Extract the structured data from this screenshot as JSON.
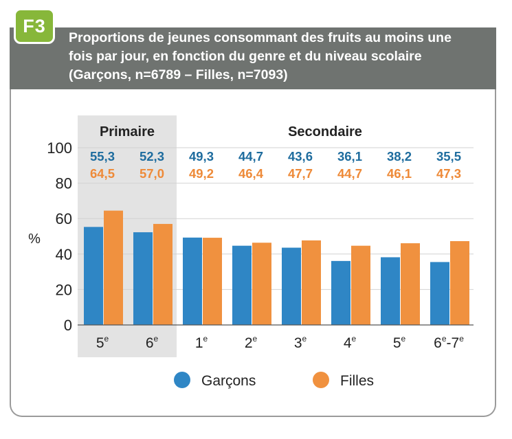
{
  "badge": "F3",
  "title_lines": [
    "Proportions de jeunes consommant des fruits au moins une",
    "fois par jour, en fonction du genre et du niveau scolaire",
    "(Garçons, n=6789 – Filles, n=7093)"
  ],
  "colors": {
    "garcons": "#2f86c5",
    "filles": "#f0913f",
    "garcons_label": "#1e6c9e",
    "filles_label": "#ee8a38",
    "primaire_shade": "#e3e3e3",
    "header": "#6f7370",
    "badge": "#87b73a"
  },
  "chart_data": {
    "type": "bar",
    "ylabel": "%",
    "ylim": [
      0,
      100
    ],
    "yticks": [
      0,
      20,
      40,
      60,
      80,
      100
    ],
    "grid": true,
    "groups": [
      {
        "label": "Primaire",
        "categories": 2,
        "shaded": true
      },
      {
        "label": "Secondaire",
        "categories": 6,
        "shaded": false
      }
    ],
    "categories": [
      {
        "base": "5",
        "sup": "e"
      },
      {
        "base": "6",
        "sup": "e"
      },
      {
        "base": "1",
        "sup": "e"
      },
      {
        "base": "2",
        "sup": "e"
      },
      {
        "base": "3",
        "sup": "e"
      },
      {
        "base": "4",
        "sup": "e"
      },
      {
        "base": "5",
        "sup": "e"
      },
      {
        "base": "6",
        "sup": "e",
        "mid": "-7",
        "sup2": "e"
      }
    ],
    "series": [
      {
        "name": "Garçons",
        "values": [
          55.3,
          52.3,
          49.3,
          44.7,
          43.6,
          36.1,
          38.2,
          35.5
        ],
        "labels": [
          "55,3",
          "52,3",
          "49,3",
          "44,7",
          "43,6",
          "36,1",
          "38,2",
          "35,5"
        ]
      },
      {
        "name": "Filles",
        "values": [
          64.5,
          57.0,
          49.2,
          46.4,
          47.7,
          44.7,
          46.1,
          47.3
        ],
        "labels": [
          "64,5",
          "57,0",
          "49,2",
          "46,4",
          "47,7",
          "44,7",
          "46,1",
          "47,3"
        ]
      }
    ],
    "legend": "bottom"
  }
}
